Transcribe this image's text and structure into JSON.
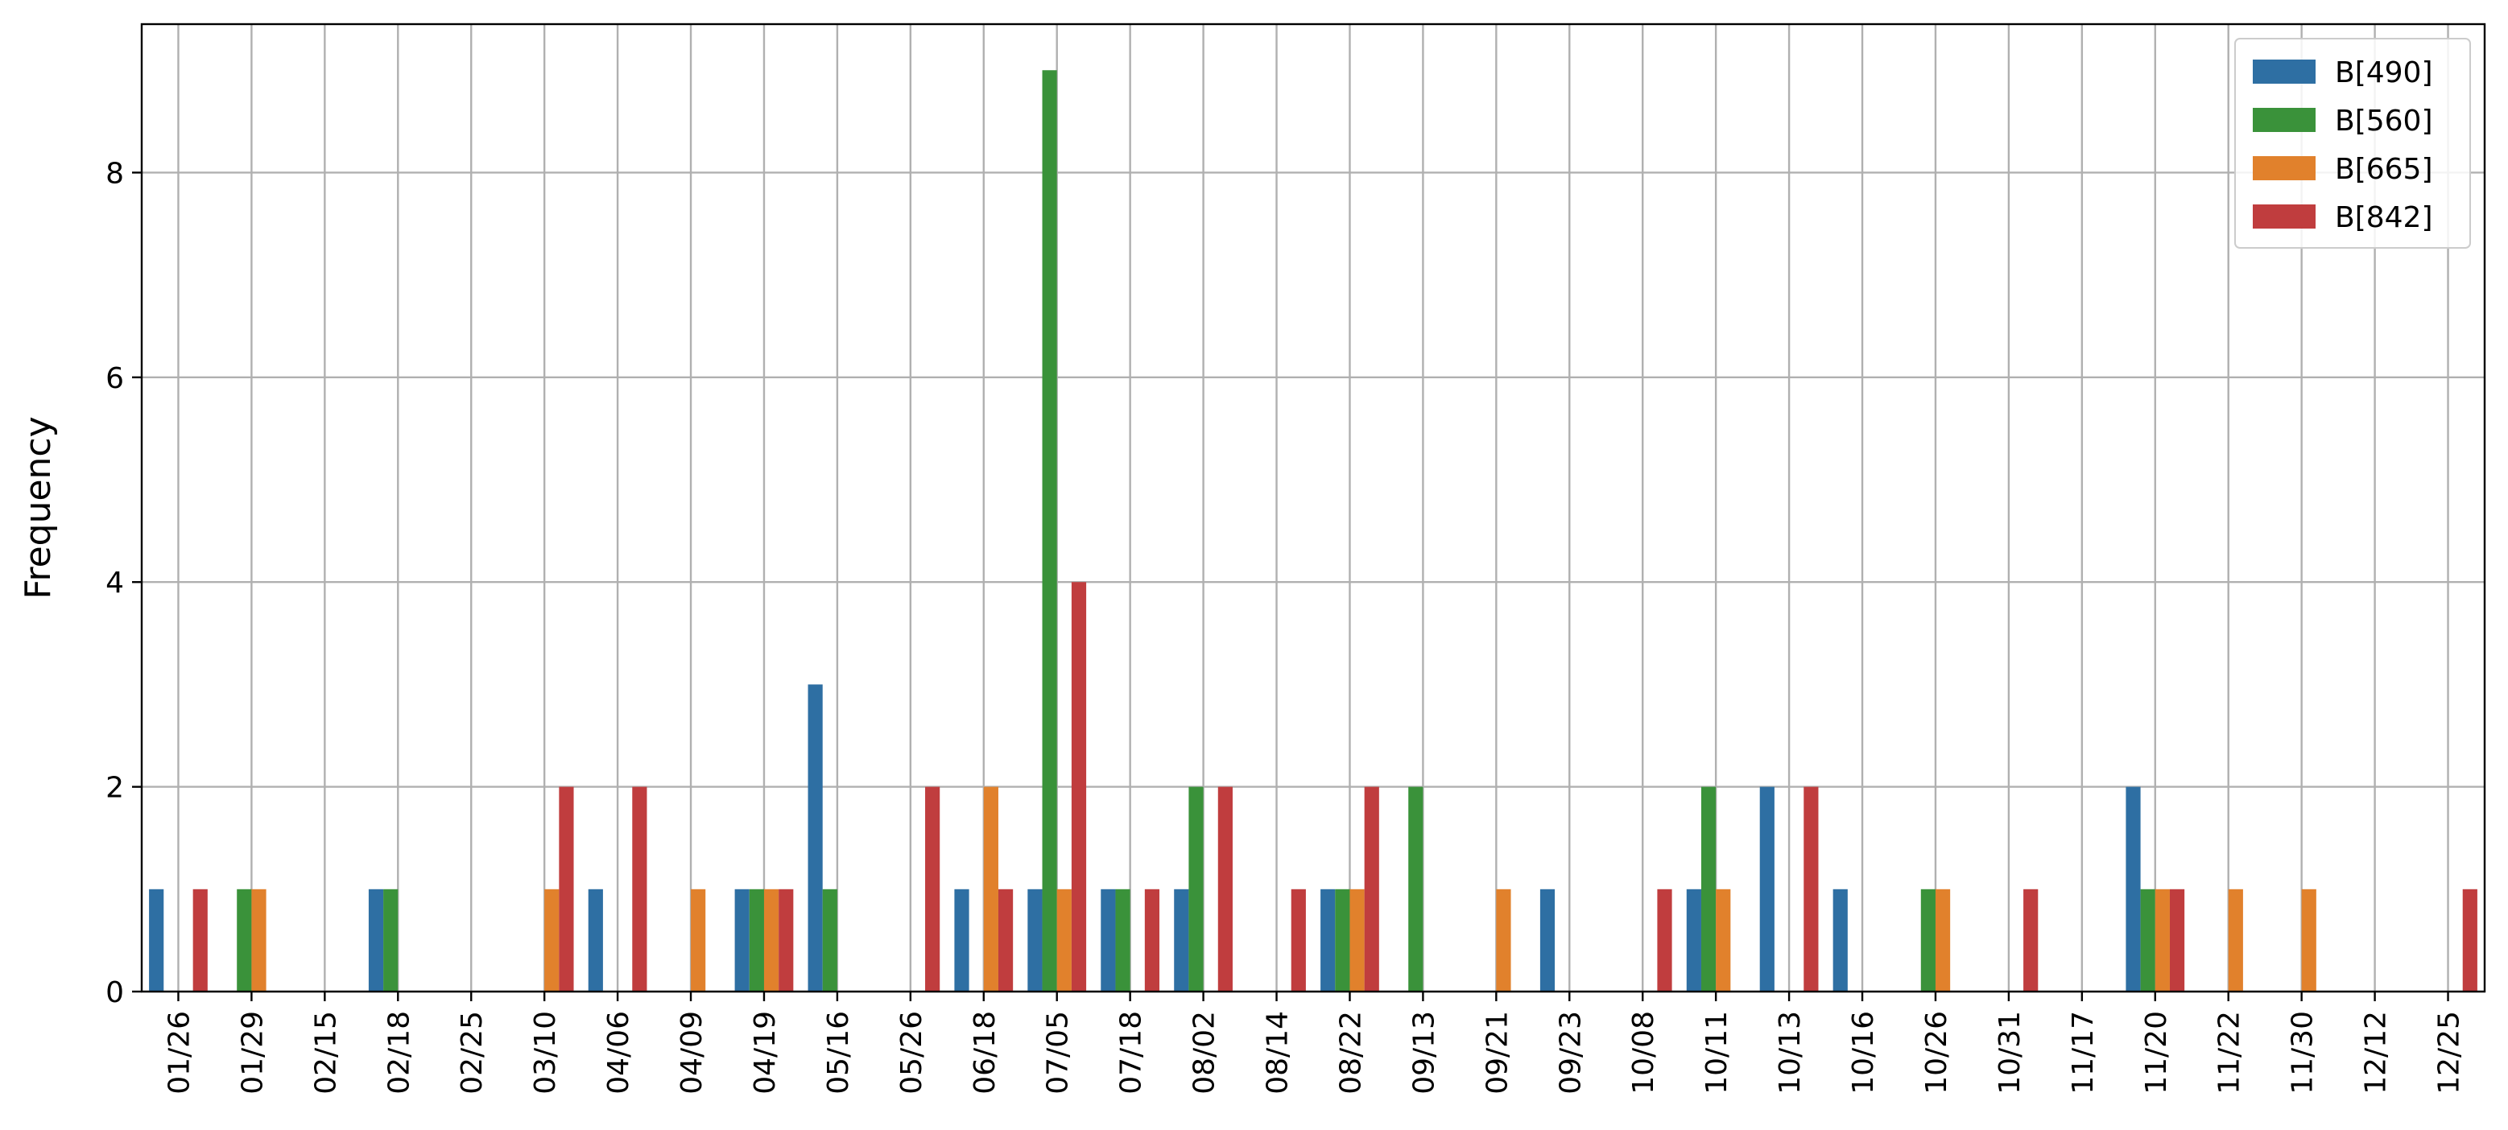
{
  "chart_data": {
    "type": "bar",
    "title": "",
    "xlabel": "",
    "ylabel": "Frequency",
    "ylim": [
      0,
      9.45
    ],
    "yticks": [
      0,
      2,
      4,
      6,
      8
    ],
    "grid": true,
    "legend_position": "top-right",
    "categories": [
      "01/26",
      "01/29",
      "02/15",
      "02/18",
      "02/25",
      "03/10",
      "04/06",
      "04/09",
      "04/19",
      "05/16",
      "05/26",
      "06/18",
      "07/05",
      "07/18",
      "08/02",
      "08/14",
      "08/22",
      "09/13",
      "09/21",
      "09/23",
      "10/08",
      "10/11",
      "10/13",
      "10/16",
      "10/26",
      "10/31",
      "11/17",
      "11/20",
      "11/22",
      "11/30",
      "12/12",
      "12/25"
    ],
    "series": [
      {
        "name": "B[490]",
        "color": "#2e6fa3",
        "values": [
          1,
          0,
          0,
          1,
          0,
          0,
          1,
          0,
          1,
          3,
          0,
          1,
          1,
          1,
          1,
          0,
          1,
          0,
          0,
          1,
          0,
          1,
          2,
          1,
          0,
          0,
          0,
          2,
          0,
          0,
          0,
          0
        ]
      },
      {
        "name": "B[560]",
        "color": "#3a923a",
        "values": [
          0,
          1,
          0,
          1,
          0,
          0,
          0,
          0,
          1,
          1,
          0,
          0,
          9,
          1,
          2,
          0,
          1,
          2,
          0,
          0,
          0,
          2,
          0,
          0,
          1,
          0,
          0,
          1,
          0,
          0,
          0,
          0
        ]
      },
      {
        "name": "B[665]",
        "color": "#e1812c",
        "values": [
          0,
          1,
          0,
          0,
          0,
          1,
          0,
          1,
          1,
          0,
          0,
          2,
          1,
          0,
          0,
          0,
          1,
          0,
          1,
          0,
          0,
          1,
          0,
          0,
          1,
          0,
          0,
          1,
          1,
          1,
          0,
          0
        ]
      },
      {
        "name": "B[842]",
        "color": "#c03d3e",
        "values": [
          1,
          0,
          0,
          0,
          0,
          2,
          2,
          0,
          1,
          0,
          2,
          1,
          4,
          1,
          2,
          1,
          2,
          0,
          0,
          0,
          1,
          0,
          2,
          0,
          0,
          1,
          0,
          1,
          0,
          0,
          0,
          1
        ]
      }
    ]
  }
}
